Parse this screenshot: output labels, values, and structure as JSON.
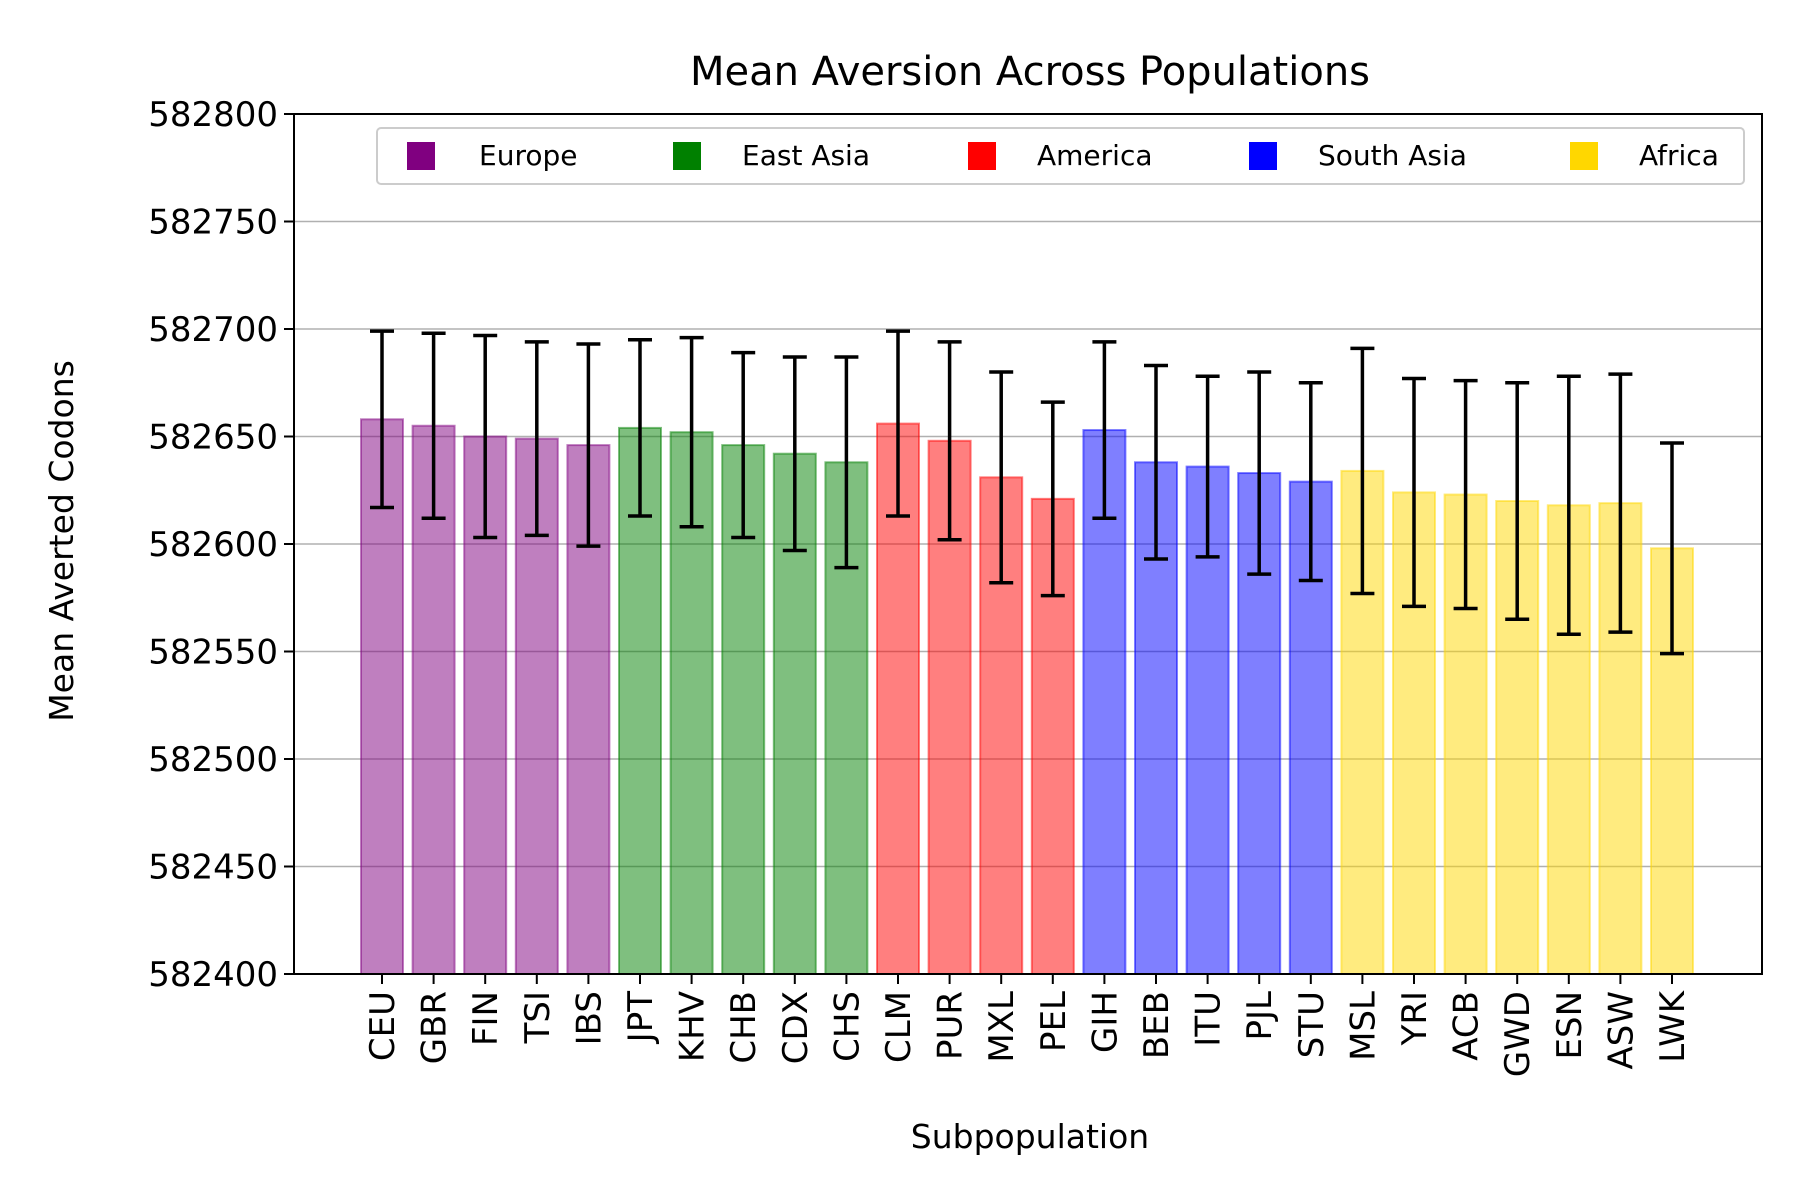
{
  "chart_data": {
    "type": "bar",
    "title": "Mean Aversion Across Populations",
    "xlabel": "Subpopulation",
    "ylabel": "Mean Averted Codons",
    "ylim": [
      582400,
      582800
    ],
    "yticks": [
      582400,
      582450,
      582500,
      582550,
      582600,
      582650,
      582700,
      582750,
      582800
    ],
    "grid": "horizontal",
    "legend_position": "top",
    "legend": [
      {
        "name": "Europe",
        "color": "#800080"
      },
      {
        "name": "East Asia",
        "color": "#008000"
      },
      {
        "name": "America",
        "color": "#ff0000"
      },
      {
        "name": "South Asia",
        "color": "#0000ff"
      },
      {
        "name": "Africa",
        "color": "#ffd700"
      }
    ],
    "categories": [
      "CEU",
      "GBR",
      "FIN",
      "TSI",
      "IBS",
      "JPT",
      "KHV",
      "CHB",
      "CDX",
      "CHS",
      "CLM",
      "PUR",
      "MXL",
      "PEL",
      "GIH",
      "BEB",
      "ITU",
      "PJL",
      "STU",
      "MSL",
      "YRI",
      "ACB",
      "GWD",
      "ESN",
      "ASW",
      "LWK"
    ],
    "groups": [
      "Europe",
      "Europe",
      "Europe",
      "Europe",
      "Europe",
      "East Asia",
      "East Asia",
      "East Asia",
      "East Asia",
      "East Asia",
      "America",
      "America",
      "America",
      "America",
      "South Asia",
      "South Asia",
      "South Asia",
      "South Asia",
      "South Asia",
      "Africa",
      "Africa",
      "Africa",
      "Africa",
      "Africa",
      "Africa",
      "Africa"
    ],
    "values": [
      582658,
      582655,
      582650,
      582649,
      582646,
      582654,
      582652,
      582646,
      582642,
      582638,
      582656,
      582648,
      582631,
      582621,
      582653,
      582638,
      582636,
      582633,
      582629,
      582634,
      582624,
      582623,
      582620,
      582618,
      582619,
      582598
    ],
    "errors": [
      41,
      43,
      47,
      45,
      47,
      41,
      44,
      43,
      45,
      49,
      43,
      46,
      49,
      45,
      41,
      45,
      42,
      47,
      46,
      57,
      53,
      53,
      55,
      60,
      60,
      49
    ]
  }
}
